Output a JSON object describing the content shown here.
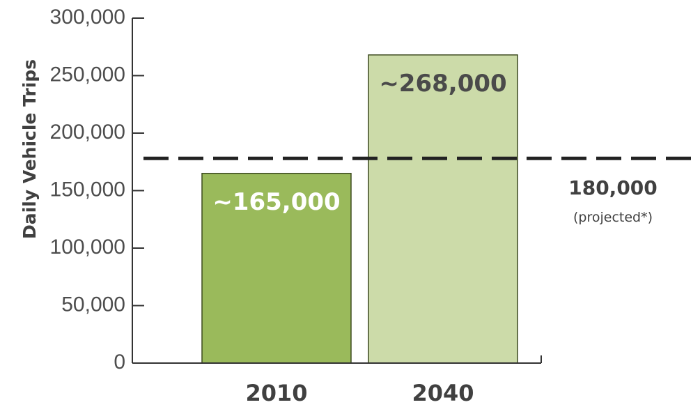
{
  "chart_data": {
    "type": "bar",
    "ylabel": "Daily Vehicle Trips",
    "categories": [
      "2010",
      "2040"
    ],
    "values": [
      165000,
      268000
    ],
    "data_labels": [
      "~165,000",
      "~268,000"
    ],
    "ylim": [
      0,
      300000
    ],
    "yticks": [
      0,
      50000,
      100000,
      150000,
      200000,
      250000,
      300000
    ],
    "ytick_labels": [
      "0",
      "50,000",
      "100,000",
      "150,000",
      "200,000",
      "250,000",
      "300,000"
    ],
    "bar_colors": [
      "#9aba5b",
      "#ccdba9"
    ],
    "data_label_colors": [
      "#ffffff",
      "#4a4a4a"
    ],
    "reference_line": {
      "value": 178000,
      "label": "180,000",
      "note": "(projected*)",
      "style": "dashed",
      "color": "#222222"
    },
    "grid": false
  }
}
